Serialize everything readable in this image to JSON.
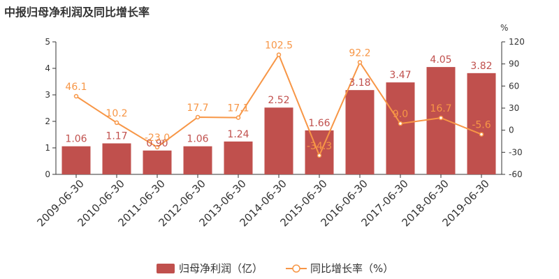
{
  "title": "中报归母净利润及同比增长率",
  "colors": {
    "bar": "#c0504d",
    "line": "#f79646",
    "axis": "#333333"
  },
  "chart_data": {
    "type": "bar",
    "title": "中报归母净利润及同比增长率",
    "categories": [
      "2009-06-30",
      "2010-06-30",
      "2011-06-30",
      "2012-06-30",
      "2013-06-30",
      "2014-06-30",
      "2015-06-30",
      "2016-06-30",
      "2017-06-30",
      "2018-06-30",
      "2019-06-30"
    ],
    "series": [
      {
        "name": "归母净利润（亿）",
        "type": "bar",
        "axis": "left",
        "values": [
          1.06,
          1.17,
          0.9,
          1.06,
          1.24,
          2.52,
          1.66,
          3.18,
          3.47,
          4.05,
          3.82
        ],
        "labels": [
          "1.06",
          "1.17",
          "0.90",
          "1.06",
          "1.24",
          "2.52",
          "1.66",
          "3.18",
          "3.47",
          "4.05",
          "3.82"
        ]
      },
      {
        "name": "同比增长率（%）",
        "type": "line",
        "axis": "right",
        "values": [
          46.1,
          10.2,
          -23.0,
          17.7,
          17.1,
          102.5,
          -34.3,
          92.2,
          9.0,
          16.7,
          -5.6
        ],
        "labels": [
          "46.1",
          "10.2",
          "-23.0",
          "17.7",
          "17.1",
          "102.5",
          "-34.3",
          "92.2",
          "9.0",
          "16.7",
          "-5.6"
        ]
      }
    ],
    "y_left": {
      "lim": [
        0,
        5
      ],
      "ticks": [
        "0",
        "1",
        "2",
        "3",
        "4",
        "5"
      ]
    },
    "y_right": {
      "lim": [
        -60,
        120
      ],
      "ticks": [
        "-60",
        "-30",
        "0",
        "30",
        "60",
        "90",
        "120"
      ],
      "unit": "%"
    },
    "grid": false,
    "legend": "bottom"
  }
}
